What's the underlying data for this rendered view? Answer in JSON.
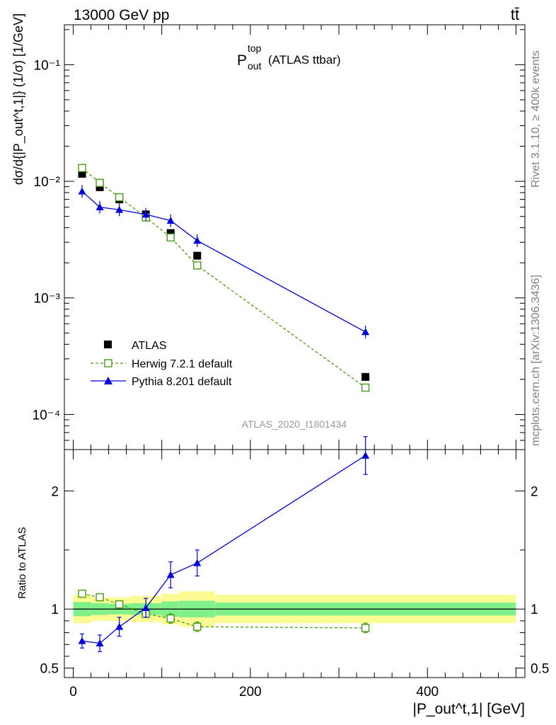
{
  "header": {
    "energy_label": "13000 GeV pp",
    "process_label": "tt̄"
  },
  "side_labels": {
    "rivet": "Rivet 3.1.10, ≥ 400k events",
    "mcplots": "mcplots.cern.ch [arXiv:1306.3436]"
  },
  "plot": {
    "title_main": "P",
    "title_sup": "top",
    "title_sub": "out",
    "title_suffix": "(ATLAS ttbar)",
    "watermark": "ATLAS_2020_I1801434",
    "ylabel": "dσ/d{|P_out^t,1|} (1/σ) [1/GeV]",
    "ratio_ylabel": "Ratio to ATLAS",
    "xlabel": "|P_out^t,1| [GeV]"
  },
  "legend": [
    {
      "label": "ATLAS",
      "key": "atlas"
    },
    {
      "label": "Herwig 7.2.1 default",
      "key": "herwig"
    },
    {
      "label": "Pythia 8.201 default",
      "key": "pythia"
    }
  ],
  "colors": {
    "atlas": "#000000",
    "herwig": "#4a9a14",
    "pythia": "#0000dd",
    "band_inner": "#7ff08a",
    "band_outer": "#fbfb93"
  },
  "chart_data": [
    {
      "type": "scatter",
      "panel": "main",
      "yscale": "log",
      "xlim": [
        -10,
        510
      ],
      "ylim": [
        5e-05,
        0.22
      ],
      "ytick_labels": [
        "10⁻⁴",
        "10⁻³",
        "10⁻²",
        "10⁻¹"
      ],
      "x": [
        10,
        30,
        52,
        82,
        110,
        140,
        330
      ],
      "series": [
        {
          "name": "ATLAS",
          "key": "atlas",
          "values": [
            0.0116,
            0.0089,
            0.007,
            0.0052,
            0.0036,
            0.0023,
            0.00021
          ]
        },
        {
          "name": "Herwig 7.2.1 default",
          "key": "herwig",
          "values": [
            0.013,
            0.0097,
            0.0073,
            0.0049,
            0.0033,
            0.0019,
            0.00017
          ]
        },
        {
          "name": "Pythia 8.201 default",
          "key": "pythia",
          "values": [
            0.0082,
            0.006,
            0.0057,
            0.0052,
            0.0046,
            0.0031,
            0.00051
          ]
        }
      ]
    },
    {
      "type": "line",
      "panel": "ratio",
      "xlim": [
        -10,
        510
      ],
      "ylim": [
        0.42,
        2.35
      ],
      "ytick_labels": [
        "0.5",
        "1",
        "2"
      ],
      "xtick_labels": [
        "0",
        "200",
        "400"
      ],
      "x": [
        10,
        30,
        52,
        82,
        110,
        140,
        330
      ],
      "bins": [
        [
          0,
          20
        ],
        [
          20,
          40
        ],
        [
          40,
          65
        ],
        [
          65,
          100
        ],
        [
          100,
          120
        ],
        [
          120,
          160
        ],
        [
          160,
          500
        ]
      ],
      "band_inner": [
        0.06,
        0.05,
        0.045,
        0.05,
        0.065,
        0.07,
        0.055
      ],
      "band_outer": [
        0.12,
        0.1,
        0.1,
        0.11,
        0.13,
        0.15,
        0.12
      ],
      "series": [
        {
          "name": "Herwig 7.2.1 default",
          "key": "herwig",
          "values": [
            1.13,
            1.1,
            1.04,
            0.96,
            0.92,
            0.85,
            0.84
          ],
          "errors": [
            0.03,
            0.03,
            0.03,
            0.03,
            0.04,
            0.04,
            0.04
          ]
        },
        {
          "name": "Pythia 8.201 default",
          "key": "pythia",
          "values": [
            0.73,
            0.71,
            0.85,
            1.01,
            1.29,
            1.39,
            2.3
          ],
          "errors": [
            0.06,
            0.07,
            0.08,
            0.08,
            0.11,
            0.11,
            0.16
          ]
        }
      ]
    }
  ]
}
